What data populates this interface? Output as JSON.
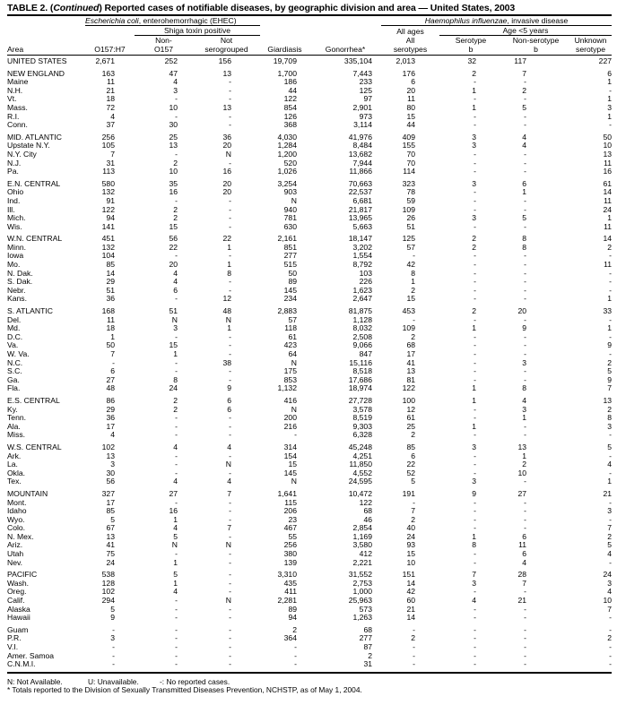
{
  "title": {
    "prefix": "TABLE 2. (",
    "continued": "Continued",
    "suffix": ") Reported cases of notifiable diseases, by geographic division and area — United States, 2003"
  },
  "headers": {
    "ecoli_italic": "Escherichia coli",
    "ecoli_rest": ", enterohemorrhagic (EHEC)",
    "hflu_italic": "Haemophilus influenzae",
    "hflu_rest": ", invasive disease",
    "shiga": "Shiga toxin positive",
    "all_ages": "All ages",
    "age_lt5": "Age <5 years",
    "columns": [
      {
        "line1": "",
        "line2": "Area"
      },
      {
        "line1": "",
        "line2": "O157:H7"
      },
      {
        "line1": "Non-",
        "line2": "O157"
      },
      {
        "line1": "Not",
        "line2": "serogrouped"
      },
      {
        "line1": "",
        "line2": "Giardiasis"
      },
      {
        "line1": "",
        "line2": "Gonorrhea*"
      },
      {
        "line1": "All",
        "line2": "serotypes"
      },
      {
        "line1": "Serotype",
        "line2": "b"
      },
      {
        "line1": "Non-serotype",
        "line2": "b"
      },
      {
        "line1": "Unknown",
        "line2": "serotype"
      }
    ]
  },
  "groups": [
    [
      [
        "UNITED STATES",
        "2,671",
        "252",
        "156",
        "19,709",
        "335,104",
        "2,013",
        "32",
        "117",
        "227"
      ]
    ],
    [
      [
        "NEW ENGLAND",
        "163",
        "47",
        "13",
        "1,700",
        "7,443",
        "176",
        "2",
        "7",
        "6"
      ],
      [
        "Maine",
        "11",
        "4",
        "-",
        "186",
        "233",
        "6",
        "-",
        "-",
        "1"
      ],
      [
        "N.H.",
        "21",
        "3",
        "-",
        "44",
        "125",
        "20",
        "1",
        "2",
        "-"
      ],
      [
        "Vt.",
        "18",
        "-",
        "-",
        "122",
        "97",
        "11",
        "-",
        "-",
        "1"
      ],
      [
        "Mass.",
        "72",
        "10",
        "13",
        "854",
        "2,901",
        "80",
        "1",
        "5",
        "3"
      ],
      [
        "R.I.",
        "4",
        "-",
        "-",
        "126",
        "973",
        "15",
        "-",
        "-",
        "1"
      ],
      [
        "Conn.",
        "37",
        "30",
        "-",
        "368",
        "3,114",
        "44",
        "-",
        "-",
        "-"
      ]
    ],
    [
      [
        "MID. ATLANTIC",
        "256",
        "25",
        "36",
        "4,030",
        "41,976",
        "409",
        "3",
        "4",
        "50"
      ],
      [
        "Upstate N.Y.",
        "105",
        "13",
        "20",
        "1,284",
        "8,484",
        "155",
        "3",
        "4",
        "10"
      ],
      [
        "N.Y. City",
        "7",
        "-",
        "N",
        "1,200",
        "13,682",
        "70",
        "-",
        "-",
        "13"
      ],
      [
        "N.J.",
        "31",
        "2",
        "-",
        "520",
        "7,944",
        "70",
        "-",
        "-",
        "11"
      ],
      [
        "Pa.",
        "113",
        "10",
        "16",
        "1,026",
        "11,866",
        "114",
        "-",
        "-",
        "16"
      ]
    ],
    [
      [
        "E.N. CENTRAL",
        "580",
        "35",
        "20",
        "3,254",
        "70,663",
        "323",
        "3",
        "6",
        "61"
      ],
      [
        "Ohio",
        "132",
        "16",
        "20",
        "903",
        "22,537",
        "78",
        "-",
        "1",
        "14"
      ],
      [
        "Ind.",
        "91",
        "-",
        "-",
        "N",
        "6,681",
        "59",
        "-",
        "-",
        "11"
      ],
      [
        "Ill.",
        "122",
        "2",
        "-",
        "940",
        "21,817",
        "109",
        "-",
        "-",
        "24"
      ],
      [
        "Mich.",
        "94",
        "2",
        "-",
        "781",
        "13,965",
        "26",
        "3",
        "5",
        "1"
      ],
      [
        "Wis.",
        "141",
        "15",
        "-",
        "630",
        "5,663",
        "51",
        "-",
        "-",
        "11"
      ]
    ],
    [
      [
        "W.N. CENTRAL",
        "451",
        "56",
        "22",
        "2,161",
        "18,147",
        "125",
        "2",
        "8",
        "14"
      ],
      [
        "Minn.",
        "132",
        "22",
        "1",
        "851",
        "3,202",
        "57",
        "2",
        "8",
        "2"
      ],
      [
        "Iowa",
        "104",
        "-",
        "-",
        "277",
        "1,554",
        "-",
        "-",
        "-",
        "-"
      ],
      [
        "Mo.",
        "85",
        "20",
        "1",
        "515",
        "8,792",
        "42",
        "-",
        "-",
        "11"
      ],
      [
        "N. Dak.",
        "14",
        "4",
        "8",
        "50",
        "103",
        "8",
        "-",
        "-",
        "-"
      ],
      [
        "S. Dak.",
        "29",
        "4",
        "-",
        "89",
        "226",
        "1",
        "-",
        "-",
        "-"
      ],
      [
        "Nebr.",
        "51",
        "6",
        "-",
        "145",
        "1,623",
        "2",
        "-",
        "-",
        "-"
      ],
      [
        "Kans.",
        "36",
        "-",
        "12",
        "234",
        "2,647",
        "15",
        "-",
        "-",
        "1"
      ]
    ],
    [
      [
        "S. ATLANTIC",
        "168",
        "51",
        "48",
        "2,883",
        "81,875",
        "453",
        "2",
        "20",
        "33"
      ],
      [
        "Del.",
        "11",
        "N",
        "N",
        "57",
        "1,128",
        "-",
        "-",
        "-",
        "-"
      ],
      [
        "Md.",
        "18",
        "3",
        "1",
        "118",
        "8,032",
        "109",
        "1",
        "9",
        "1"
      ],
      [
        "D.C.",
        "1",
        "-",
        "-",
        "61",
        "2,508",
        "2",
        "-",
        "-",
        "-"
      ],
      [
        "Va.",
        "50",
        "15",
        "-",
        "423",
        "9,066",
        "68",
        "-",
        "-",
        "9"
      ],
      [
        "W. Va.",
        "7",
        "1",
        "-",
        "64",
        "847",
        "17",
        "-",
        "-",
        "-"
      ],
      [
        "N.C.",
        "-",
        "-",
        "38",
        "N",
        "15,116",
        "41",
        "-",
        "3",
        "2"
      ],
      [
        "S.C.",
        "6",
        "-",
        "-",
        "175",
        "8,518",
        "13",
        "-",
        "-",
        "5"
      ],
      [
        "Ga.",
        "27",
        "8",
        "-",
        "853",
        "17,686",
        "81",
        "-",
        "-",
        "9"
      ],
      [
        "Fla.",
        "48",
        "24",
        "9",
        "1,132",
        "18,974",
        "122",
        "1",
        "8",
        "7"
      ]
    ],
    [
      [
        "E.S. CENTRAL",
        "86",
        "2",
        "6",
        "416",
        "27,728",
        "100",
        "1",
        "4",
        "13"
      ],
      [
        "Ky.",
        "29",
        "2",
        "6",
        "N",
        "3,578",
        "12",
        "-",
        "3",
        "2"
      ],
      [
        "Tenn.",
        "36",
        "-",
        "-",
        "200",
        "8,519",
        "61",
        "-",
        "1",
        "8"
      ],
      [
        "Ala.",
        "17",
        "-",
        "-",
        "216",
        "9,303",
        "25",
        "1",
        "-",
        "3"
      ],
      [
        "Miss.",
        "4",
        "-",
        "-",
        "-",
        "6,328",
        "2",
        "-",
        "-",
        "-"
      ]
    ],
    [
      [
        "W.S. CENTRAL",
        "102",
        "4",
        "4",
        "314",
        "45,248",
        "85",
        "3",
        "13",
        "5"
      ],
      [
        "Ark.",
        "13",
        "-",
        "-",
        "154",
        "4,251",
        "6",
        "-",
        "1",
        "-"
      ],
      [
        "La.",
        "3",
        "-",
        "N",
        "15",
        "11,850",
        "22",
        "-",
        "2",
        "4"
      ],
      [
        "Okla.",
        "30",
        "-",
        "-",
        "145",
        "4,552",
        "52",
        "-",
        "10",
        "-"
      ],
      [
        "Tex.",
        "56",
        "4",
        "4",
        "N",
        "24,595",
        "5",
        "3",
        "-",
        "1"
      ]
    ],
    [
      [
        "MOUNTAIN",
        "327",
        "27",
        "7",
        "1,641",
        "10,472",
        "191",
        "9",
        "27",
        "21"
      ],
      [
        "Mont.",
        "17",
        "-",
        "-",
        "115",
        "122",
        "-",
        "-",
        "-",
        "-"
      ],
      [
        "Idaho",
        "85",
        "16",
        "-",
        "206",
        "68",
        "7",
        "-",
        "-",
        "3"
      ],
      [
        "Wyo.",
        "5",
        "1",
        "-",
        "23",
        "46",
        "2",
        "-",
        "-",
        "-"
      ],
      [
        "Colo.",
        "67",
        "4",
        "7",
        "467",
        "2,854",
        "40",
        "-",
        "-",
        "7"
      ],
      [
        "N. Mex.",
        "13",
        "5",
        "-",
        "55",
        "1,169",
        "24",
        "1",
        "6",
        "2"
      ],
      [
        "Ariz.",
        "41",
        "N",
        "N",
        "256",
        "3,580",
        "93",
        "8",
        "11",
        "5"
      ],
      [
        "Utah",
        "75",
        "-",
        "-",
        "380",
        "412",
        "15",
        "-",
        "6",
        "4"
      ],
      [
        "Nev.",
        "24",
        "1",
        "-",
        "139",
        "2,221",
        "10",
        "-",
        "4",
        "-"
      ]
    ],
    [
      [
        "PACIFIC",
        "538",
        "5",
        "-",
        "3,310",
        "31,552",
        "151",
        "7",
        "28",
        "24"
      ],
      [
        "Wash.",
        "128",
        "1",
        "-",
        "435",
        "2,753",
        "14",
        "3",
        "7",
        "3"
      ],
      [
        "Oreg.",
        "102",
        "4",
        "-",
        "411",
        "1,000",
        "42",
        "-",
        "-",
        "4"
      ],
      [
        "Calif.",
        "294",
        "-",
        "N",
        "2,281",
        "25,963",
        "60",
        "4",
        "21",
        "10"
      ],
      [
        "Alaska",
        "5",
        "-",
        "-",
        "89",
        "573",
        "21",
        "-",
        "-",
        "7"
      ],
      [
        "Hawaii",
        "9",
        "-",
        "-",
        "94",
        "1,263",
        "14",
        "-",
        "-",
        "-"
      ]
    ],
    [
      [
        "Guam",
        "-",
        "-",
        "-",
        "2",
        "68",
        "-",
        "-",
        "-",
        "-"
      ],
      [
        "P.R.",
        "3",
        "-",
        "-",
        "364",
        "277",
        "2",
        "-",
        "-",
        "2"
      ],
      [
        "V.I.",
        "-",
        "-",
        "-",
        "-",
        "87",
        "-",
        "-",
        "-",
        "-"
      ],
      [
        "Amer. Samoa",
        "-",
        "-",
        "-",
        "-",
        "2",
        "-",
        "-",
        "-",
        "-"
      ],
      [
        "C.N.M.I.",
        "-",
        "-",
        "-",
        "-",
        "31",
        "-",
        "-",
        "-",
        "-"
      ]
    ]
  ],
  "footnotes": {
    "n": "N: Not Available.",
    "u": "U: Unavailable.",
    "dash": "-: No reported cases.",
    "star": "* Totals reported to the Division of Sexually Transmitted Diseases Prevention, NCHSTP, as of May 1, 2004."
  }
}
